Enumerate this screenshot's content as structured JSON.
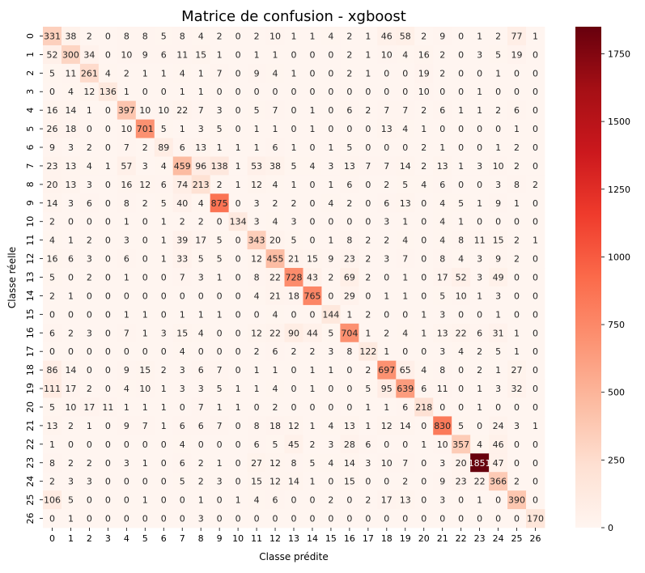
{
  "chart_data": {
    "type": "heatmap",
    "title": "Matrice de confusion - xgboost",
    "xlabel": "Classe prédite",
    "ylabel": "Classe réelle",
    "labels": [
      "0",
      "1",
      "2",
      "3",
      "4",
      "5",
      "6",
      "7",
      "8",
      "9",
      "10",
      "11",
      "12",
      "13",
      "14",
      "15",
      "16",
      "17",
      "18",
      "19",
      "20",
      "21",
      "22",
      "23",
      "24",
      "25",
      "26"
    ],
    "colormap": "Reds",
    "colors": [
      "#fff5f0",
      "#fee0d2",
      "#fcbba1",
      "#fc9272",
      "#fb6a4a",
      "#ef3b2c",
      "#cb181d",
      "#a50f15",
      "#67000d"
    ],
    "vmin": 0,
    "vmax": 1850,
    "colorbar_ticks": [
      0,
      250,
      500,
      750,
      1000,
      1250,
      1500,
      1750
    ],
    "matrix": [
      [
        331,
        38,
        2,
        0,
        8,
        8,
        5,
        8,
        4,
        2,
        0,
        2,
        10,
        1,
        1,
        4,
        2,
        1,
        46,
        58,
        2,
        9,
        0,
        1,
        2,
        77,
        1
      ],
      [
        52,
        300,
        34,
        0,
        10,
        9,
        6,
        11,
        15,
        1,
        0,
        1,
        1,
        0,
        0,
        0,
        2,
        1,
        10,
        4,
        16,
        2,
        0,
        3,
        5,
        19,
        0
      ],
      [
        5,
        11,
        261,
        4,
        2,
        1,
        1,
        4,
        1,
        7,
        0,
        9,
        4,
        1,
        0,
        0,
        2,
        1,
        0,
        0,
        19,
        2,
        0,
        0,
        1,
        0,
        0
      ],
      [
        0,
        4,
        12,
        136,
        1,
        0,
        0,
        1,
        1,
        0,
        0,
        0,
        0,
        0,
        0,
        0,
        0,
        0,
        0,
        0,
        10,
        0,
        0,
        1,
        0,
        0,
        0
      ],
      [
        16,
        14,
        1,
        0,
        397,
        10,
        10,
        22,
        7,
        3,
        0,
        5,
        7,
        0,
        1,
        0,
        6,
        2,
        7,
        7,
        2,
        6,
        1,
        1,
        2,
        6,
        0
      ],
      [
        26,
        18,
        0,
        0,
        10,
        701,
        5,
        1,
        3,
        5,
        0,
        1,
        1,
        0,
        1,
        0,
        0,
        0,
        13,
        4,
        1,
        0,
        0,
        0,
        0,
        1,
        0
      ],
      [
        9,
        3,
        2,
        0,
        7,
        2,
        89,
        6,
        13,
        1,
        1,
        1,
        6,
        1,
        0,
        1,
        5,
        0,
        0,
        0,
        2,
        1,
        0,
        0,
        1,
        2,
        0
      ],
      [
        23,
        13,
        4,
        1,
        57,
        3,
        4,
        459,
        96,
        138,
        1,
        53,
        38,
        5,
        4,
        3,
        13,
        7,
        7,
        14,
        2,
        13,
        1,
        3,
        10,
        2,
        0
      ],
      [
        20,
        13,
        3,
        0,
        16,
        12,
        6,
        74,
        213,
        2,
        1,
        12,
        4,
        1,
        0,
        1,
        6,
        0,
        2,
        5,
        4,
        6,
        0,
        0,
        3,
        8,
        2
      ],
      [
        14,
        3,
        6,
        0,
        8,
        2,
        5,
        40,
        4,
        875,
        0,
        3,
        2,
        2,
        0,
        4,
        2,
        0,
        6,
        13,
        0,
        4,
        5,
        1,
        9,
        1,
        0
      ],
      [
        2,
        0,
        0,
        0,
        1,
        0,
        1,
        2,
        2,
        0,
        134,
        3,
        4,
        3,
        0,
        0,
        0,
        0,
        3,
        1,
        0,
        4,
        1,
        0,
        0,
        0,
        0
      ],
      [
        4,
        1,
        2,
        0,
        3,
        0,
        1,
        39,
        17,
        5,
        0,
        343,
        20,
        5,
        0,
        1,
        8,
        2,
        2,
        4,
        0,
        4,
        8,
        11,
        15,
        2,
        1
      ],
      [
        16,
        6,
        3,
        0,
        6,
        0,
        1,
        33,
        5,
        5,
        0,
        12,
        455,
        21,
        15,
        9,
        23,
        2,
        3,
        7,
        0,
        8,
        4,
        3,
        9,
        2,
        0
      ],
      [
        5,
        0,
        2,
        0,
        1,
        0,
        0,
        7,
        3,
        1,
        0,
        8,
        22,
        728,
        43,
        2,
        69,
        2,
        0,
        1,
        0,
        17,
        52,
        3,
        49,
        0,
        0
      ],
      [
        2,
        1,
        0,
        0,
        0,
        0,
        0,
        0,
        0,
        0,
        0,
        4,
        21,
        18,
        765,
        0,
        29,
        0,
        1,
        1,
        0,
        5,
        10,
        1,
        3,
        0,
        0
      ],
      [
        0,
        0,
        0,
        0,
        1,
        1,
        0,
        1,
        1,
        1,
        0,
        0,
        4,
        0,
        0,
        144,
        1,
        2,
        0,
        0,
        1,
        3,
        0,
        0,
        1,
        0,
        0
      ],
      [
        6,
        2,
        3,
        0,
        7,
        1,
        3,
        15,
        4,
        0,
        0,
        12,
        22,
        90,
        44,
        5,
        704,
        1,
        2,
        4,
        1,
        13,
        22,
        6,
        31,
        1,
        0
      ],
      [
        0,
        0,
        0,
        0,
        0,
        0,
        0,
        4,
        0,
        0,
        0,
        2,
        6,
        2,
        2,
        3,
        8,
        122,
        1,
        0,
        0,
        3,
        4,
        2,
        5,
        1,
        0
      ],
      [
        86,
        14,
        0,
        0,
        9,
        15,
        2,
        3,
        6,
        7,
        0,
        1,
        1,
        0,
        1,
        1,
        0,
        2,
        697,
        65,
        4,
        8,
        0,
        2,
        1,
        27,
        0
      ],
      [
        111,
        17,
        2,
        0,
        4,
        10,
        1,
        3,
        3,
        5,
        1,
        1,
        4,
        0,
        1,
        0,
        0,
        5,
        95,
        639,
        6,
        11,
        0,
        1,
        3,
        32,
        0
      ],
      [
        5,
        10,
        17,
        11,
        1,
        1,
        1,
        0,
        7,
        1,
        1,
        0,
        2,
        0,
        0,
        0,
        0,
        1,
        1,
        6,
        218,
        0,
        0,
        1,
        0,
        0,
        0
      ],
      [
        13,
        2,
        1,
        0,
        9,
        7,
        1,
        6,
        6,
        7,
        0,
        8,
        18,
        12,
        1,
        4,
        13,
        1,
        12,
        14,
        0,
        830,
        5,
        0,
        24,
        3,
        1
      ],
      [
        1,
        0,
        0,
        0,
        0,
        0,
        0,
        4,
        0,
        0,
        0,
        6,
        5,
        45,
        2,
        3,
        28,
        6,
        0,
        0,
        1,
        10,
        357,
        4,
        46,
        0,
        0
      ],
      [
        8,
        2,
        2,
        0,
        3,
        1,
        0,
        6,
        2,
        1,
        0,
        27,
        12,
        8,
        5,
        4,
        14,
        3,
        10,
        7,
        0,
        3,
        20,
        1851,
        47,
        0,
        0
      ],
      [
        2,
        3,
        3,
        0,
        0,
        0,
        0,
        5,
        2,
        3,
        0,
        15,
        12,
        14,
        1,
        0,
        15,
        0,
        0,
        2,
        0,
        9,
        23,
        22,
        366,
        2,
        0
      ],
      [
        106,
        5,
        0,
        0,
        0,
        1,
        0,
        0,
        1,
        0,
        1,
        4,
        6,
        0,
        0,
        2,
        0,
        2,
        17,
        13,
        0,
        3,
        0,
        1,
        0,
        390,
        0
      ],
      [
        0,
        1,
        0,
        0,
        0,
        0,
        0,
        0,
        3,
        0,
        0,
        0,
        0,
        0,
        0,
        0,
        0,
        0,
        0,
        0,
        0,
        0,
        0,
        0,
        0,
        0,
        170
      ]
    ]
  }
}
